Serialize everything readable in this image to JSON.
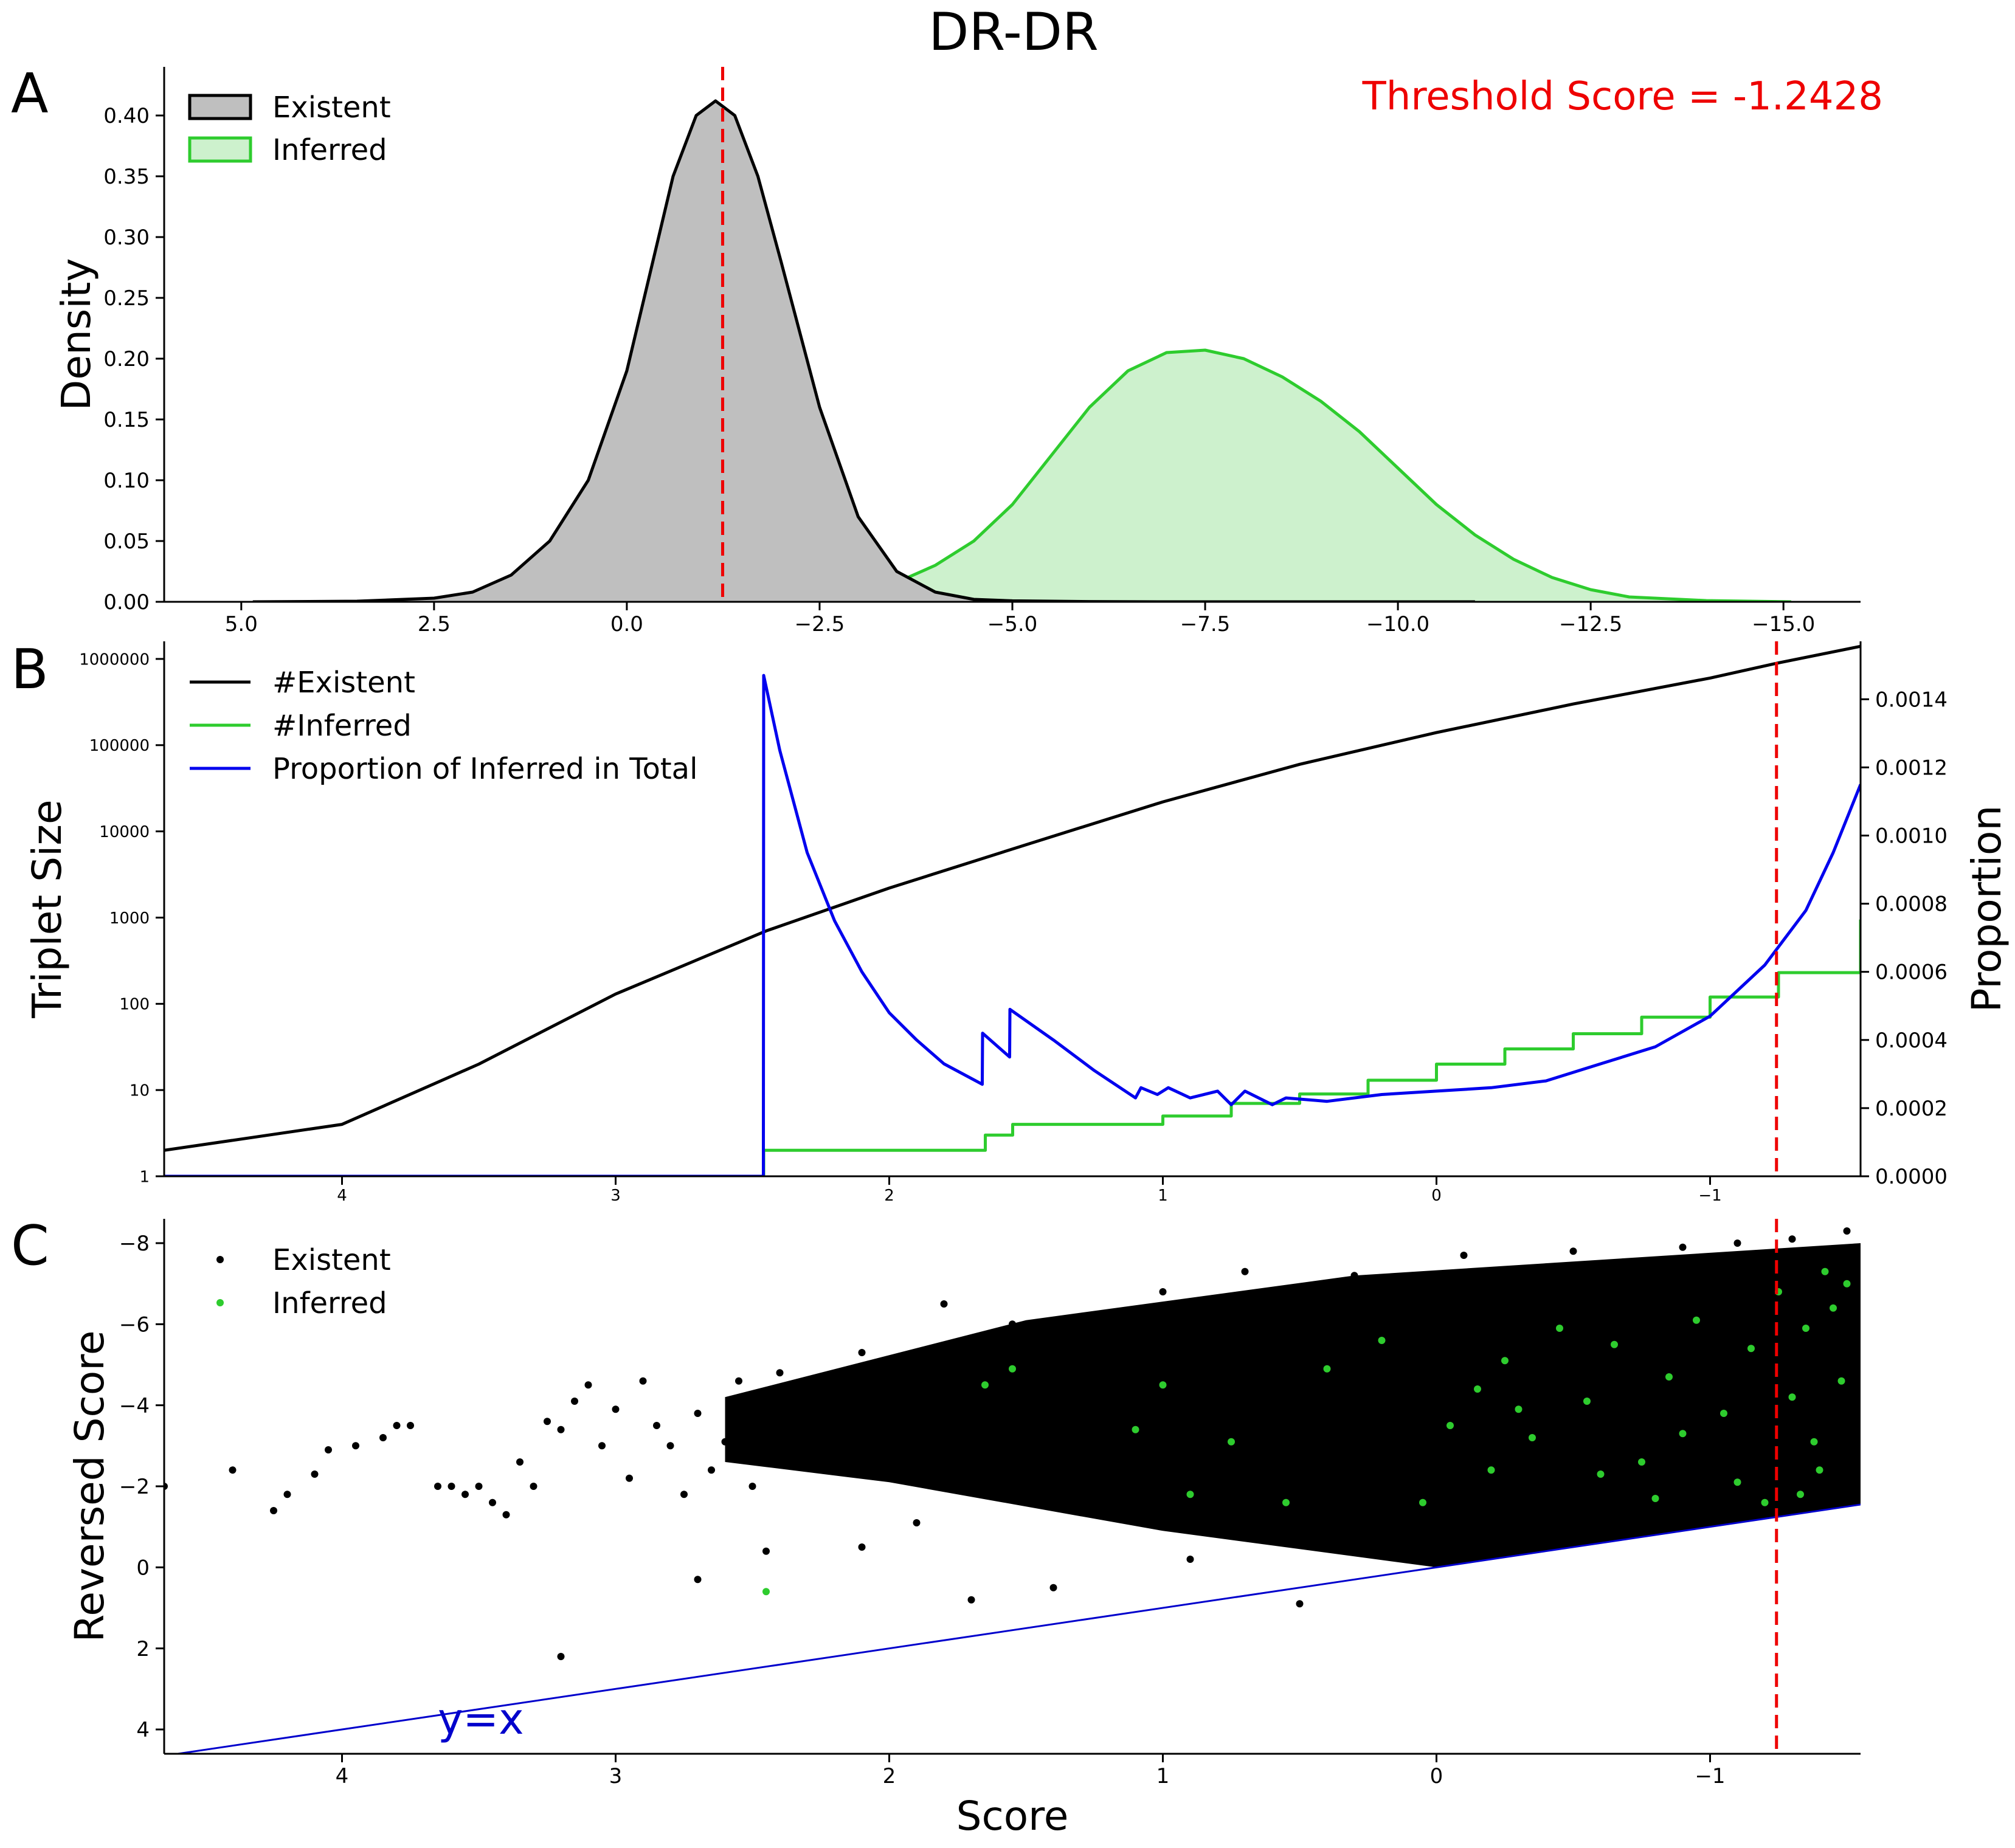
{
  "figure": {
    "title": "DR-DR",
    "threshold_label": "Threshold Score = -1.2428",
    "threshold_score": -1.2428,
    "colors": {
      "existent": "#000000",
      "existent_fill": "#bfbfbf",
      "inferred": "#2ecc2e",
      "inferred_fill": "#cdf1cd",
      "proportion": "#0000ee",
      "threshold": "#ee0000",
      "diagonal": "#0000cc"
    },
    "panels": [
      {
        "letter": "A"
      },
      {
        "letter": "B"
      },
      {
        "letter": "C"
      }
    ]
  },
  "chart_data": [
    {
      "panel": "A",
      "type": "area",
      "xlabel": "",
      "ylabel": "Density",
      "xlim": [
        6.0,
        -16.0
      ],
      "ylim": [
        0.0,
        0.44
      ],
      "x_reversed": true,
      "xticks": [
        5.0,
        2.5,
        0.0,
        -2.5,
        -5.0,
        -7.5,
        -10.0,
        -12.5,
        -15.0
      ],
      "xtick_labels": [
        "5.0",
        "2.5",
        "0.0",
        "−2.5",
        "−5.0",
        "−7.5",
        "−10.0",
        "−12.5",
        "−15.0"
      ],
      "yticks": [
        0.0,
        0.05,
        0.1,
        0.15,
        0.2,
        0.25,
        0.3,
        0.35,
        0.4
      ],
      "ytick_labels": [
        "0.00",
        "0.05",
        "0.10",
        "0.15",
        "0.20",
        "0.25",
        "0.30",
        "0.35",
        "0.40"
      ],
      "legend": {
        "placement": "upper-left",
        "entries": [
          "Existent",
          "Inferred"
        ]
      },
      "series": [
        {
          "name": "Existent",
          "x": [
            4.85,
            3.5,
            2.5,
            2.0,
            1.5,
            1.0,
            0.5,
            0.0,
            -0.3,
            -0.6,
            -0.9,
            -1.15,
            -1.4,
            -1.7,
            -2.0,
            -2.5,
            -3.0,
            -3.5,
            -4.0,
            -4.5,
            -5.0,
            -6.0,
            -7.0,
            -8.0,
            -10.0,
            -11.0
          ],
          "y": [
            0.0,
            0.0005,
            0.003,
            0.008,
            0.022,
            0.05,
            0.1,
            0.19,
            0.27,
            0.35,
            0.4,
            0.412,
            0.4,
            0.35,
            0.28,
            0.16,
            0.07,
            0.025,
            0.008,
            0.002,
            0.0008,
            0.0002,
            0.0,
            0.0,
            0.0,
            0.0
          ]
        },
        {
          "name": "Inferred",
          "x": [
            0.15,
            -1.0,
            -2.0,
            -3.0,
            -3.5,
            -4.0,
            -4.5,
            -5.0,
            -5.5,
            -6.0,
            -6.5,
            -7.0,
            -7.5,
            -8.0,
            -8.5,
            -9.0,
            -9.5,
            -10.0,
            -10.5,
            -11.0,
            -11.5,
            -12.0,
            -12.5,
            -13.0,
            -14.0,
            -15.1
          ],
          "y": [
            0.0,
            0.0005,
            0.002,
            0.008,
            0.016,
            0.03,
            0.05,
            0.08,
            0.12,
            0.16,
            0.19,
            0.205,
            0.207,
            0.2,
            0.185,
            0.165,
            0.14,
            0.11,
            0.08,
            0.055,
            0.035,
            0.02,
            0.01,
            0.004,
            0.001,
            0.0
          ]
        }
      ]
    },
    {
      "panel": "B",
      "type": "line",
      "xlabel": "",
      "ylabel": "Triplet Size",
      "ylabel_right": "Proportion",
      "xlim": [
        4.65,
        -1.55
      ],
      "x_reversed": true,
      "y_scale": "log",
      "ylim": [
        1,
        1600000
      ],
      "ylim_right": [
        0.0,
        0.00157
      ],
      "xticks": [
        4,
        3,
        2,
        1,
        0,
        -1
      ],
      "xtick_labels": [
        "4",
        "3",
        "2",
        "1",
        "0",
        "−1"
      ],
      "yticks": [
        1,
        10,
        100,
        1000,
        10000,
        100000,
        1000000
      ],
      "ytick_labels": [
        "1",
        "10",
        "100",
        "1000",
        "10000",
        "100000",
        "1000000"
      ],
      "yticks_right": [
        0.0,
        0.0002,
        0.0004,
        0.0006,
        0.0008,
        0.001,
        0.0012,
        0.0014
      ],
      "ytick_labels_right": [
        "0.0000",
        "0.0002",
        "0.0004",
        "0.0006",
        "0.0008",
        "0.0010",
        "0.0012",
        "0.0014"
      ],
      "legend": {
        "placement": "upper-left",
        "entries": [
          "#Existent",
          "#Inferred",
          "Proportion of Inferred in Total"
        ]
      },
      "series": [
        {
          "name": "#Existent",
          "axis": "left",
          "x": [
            4.65,
            4.0,
            3.5,
            3.0,
            2.45,
            2.0,
            1.5,
            1.0,
            0.5,
            0.0,
            -0.5,
            -1.0,
            -1.25,
            -1.55
          ],
          "y": [
            2,
            4,
            20,
            130,
            700,
            2200,
            7000,
            22000,
            60000,
            140000,
            300000,
            600000,
            900000,
            1400000
          ]
        },
        {
          "name": "#Inferred",
          "axis": "left",
          "step": true,
          "x": [
            4.65,
            2.46,
            2.459,
            1.65,
            1.649,
            1.55,
            1.549,
            1.1,
            1.0,
            0.75,
            0.5,
            0.25,
            0.0,
            -0.25,
            -0.5,
            -0.75,
            -1.0,
            -1.25,
            -1.55
          ],
          "y": [
            1,
            1,
            2,
            2,
            3,
            3,
            4,
            4,
            5,
            7,
            9,
            13,
            20,
            30,
            45,
            70,
            120,
            230,
            950
          ]
        },
        {
          "name": "Proportion of Inferred in Total",
          "axis": "right",
          "x": [
            4.65,
            2.46,
            2.459,
            2.4,
            2.3,
            2.2,
            2.1,
            2.0,
            1.9,
            1.8,
            1.66,
            1.659,
            1.56,
            1.559,
            1.4,
            1.25,
            1.1,
            1.08,
            1.02,
            0.98,
            0.9,
            0.8,
            0.75,
            0.7,
            0.6,
            0.55,
            0.4,
            0.2,
            0.0,
            -0.2,
            -0.4,
            -0.6,
            -0.8,
            -1.0,
            -1.2,
            -1.35,
            -1.45,
            -1.55
          ],
          "y": [
            0.0,
            0.0,
            0.00147,
            0.00125,
            0.00095,
            0.00075,
            0.0006,
            0.00048,
            0.0004,
            0.00033,
            0.00027,
            0.00042,
            0.00035,
            0.00049,
            0.0004,
            0.00031,
            0.00023,
            0.00026,
            0.00024,
            0.00026,
            0.00023,
            0.00025,
            0.00021,
            0.00025,
            0.00021,
            0.00023,
            0.00022,
            0.00024,
            0.00025,
            0.00026,
            0.00028,
            0.00033,
            0.00038,
            0.00047,
            0.00062,
            0.00078,
            0.00095,
            0.00115
          ]
        }
      ]
    },
    {
      "panel": "C",
      "type": "scatter",
      "xlabel": "Score",
      "ylabel": "Reversed Score",
      "xlim": [
        4.65,
        -1.55
      ],
      "ylim": [
        4.6,
        -8.6
      ],
      "x_reversed": true,
      "y_reversed": true,
      "xticks": [
        4,
        3,
        2,
        1,
        0,
        -1
      ],
      "xtick_labels": [
        "4",
        "3",
        "2",
        "1",
        "0",
        "−1"
      ],
      "yticks": [
        4,
        2,
        0,
        -2,
        -4,
        -6,
        -8
      ],
      "ytick_labels": [
        "4",
        "2",
        "0",
        "−2",
        "−4",
        "−6",
        "−8"
      ],
      "legend": {
        "placement": "upper-left",
        "entries": [
          "Existent",
          "Inferred"
        ]
      },
      "annotation": "y=x",
      "reference_line": {
        "label": "y=x",
        "x": [
          4.65,
          -1.55
        ],
        "y": [
          4.65,
          -1.55
        ]
      },
      "series": [
        {
          "name": "Existent",
          "density_region": {
            "x_from": 2.6,
            "x_to": -1.55,
            "upper_bound_at_x_from": -4.2,
            "upper_bound_at_x_to": -8.0,
            "lower_bound_follows": "y=x"
          },
          "x": [
            4.65,
            4.4,
            4.25,
            4.2,
            4.1,
            4.05,
            3.95,
            3.85,
            3.8,
            3.75,
            3.65,
            3.6,
            3.55,
            3.5,
            3.45,
            3.4,
            3.35,
            3.3,
            3.25,
            3.2,
            3.15,
            3.1,
            3.05,
            3.0,
            2.95,
            2.9,
            2.85,
            2.8,
            2.75,
            2.7,
            2.65,
            2.6,
            2.55,
            2.5,
            2.45,
            2.4,
            2.35,
            2.3,
            2.25,
            2.2,
            2.15,
            2.1,
            2.05,
            2.0,
            1.9,
            1.8,
            1.7,
            1.6,
            1.55,
            1.5,
            1.4,
            1.3,
            1.2,
            1.1,
            1.0,
            0.9,
            0.8,
            0.7,
            0.6,
            0.5,
            0.4,
            0.3,
            0.2,
            0.1,
            0.0,
            -0.1,
            -0.2,
            -0.3,
            -0.4,
            -0.5,
            -0.6,
            -0.7,
            -0.8,
            -0.9,
            -1.0,
            -1.1,
            -1.2,
            -1.3,
            -1.4,
            -1.5,
            3.2,
            2.7,
            2.45,
            2.1,
            1.9,
            1.7,
            1.4,
            0.9,
            0.5,
            -0.1,
            -0.9,
            -1.3
          ],
          "y": [
            -2.0,
            -2.4,
            -1.4,
            -1.8,
            -2.3,
            -2.9,
            -3.0,
            -3.2,
            -3.5,
            -3.5,
            -2.0,
            -2.0,
            -1.8,
            -2.0,
            -1.6,
            -1.3,
            -2.6,
            -2.0,
            -3.6,
            -3.4,
            -4.1,
            -4.5,
            -3.0,
            -3.9,
            -2.2,
            -4.6,
            -3.5,
            -3.0,
            -1.8,
            -3.8,
            -2.4,
            -3.1,
            -4.6,
            -2.0,
            -3.9,
            -4.8,
            -3.4,
            -2.7,
            -4.5,
            -3.6,
            -2.4,
            -5.3,
            -4.0,
            -3.5,
            -4.8,
            -6.5,
            -2.5,
            -5.5,
            -6.0,
            -3.5,
            -5.8,
            -4.4,
            -6.2,
            -3.2,
            -6.8,
            -5.9,
            -4.0,
            -7.3,
            -3.5,
            -6.5,
            -5.0,
            -7.2,
            -4.8,
            -6.0,
            -5.5,
            -7.7,
            -6.2,
            -7.0,
            -5.1,
            -7.8,
            -4.6,
            -7.0,
            -6.8,
            -7.9,
            -7.4,
            -8.0,
            -6.9,
            -8.1,
            -7.6,
            -8.3,
            2.2,
            0.3,
            -0.4,
            -0.5,
            -1.1,
            0.8,
            0.5,
            -0.2,
            0.9,
            -0.3,
            -1.5,
            -1.4
          ]
        },
        {
          "name": "Inferred",
          "x": [
            2.45,
            1.65,
            1.55,
            1.1,
            1.0,
            0.75,
            0.55,
            0.4,
            0.2,
            0.05,
            -0.05,
            -0.15,
            -0.25,
            -0.35,
            -0.45,
            -0.55,
            -0.65,
            -0.75,
            -0.85,
            -0.95,
            -1.05,
            -1.15,
            -1.25,
            -1.3,
            -1.35,
            -1.4,
            -1.45,
            -1.5,
            -0.3,
            -0.6,
            -0.9,
            -1.1,
            -1.2,
            -1.33,
            -1.42,
            -1.48,
            0.9,
            -0.2,
            -0.8,
            -1.38
          ],
          "y": [
            0.6,
            -4.5,
            -4.9,
            -3.4,
            -4.5,
            -3.1,
            -1.6,
            -4.9,
            -5.6,
            -1.6,
            -3.5,
            -4.4,
            -5.1,
            -3.2,
            -5.9,
            -4.1,
            -5.5,
            -2.6,
            -4.7,
            -6.1,
            -3.8,
            -5.4,
            -6.8,
            -4.2,
            -5.9,
            -2.4,
            -6.4,
            -7.0,
            -3.9,
            -2.3,
            -3.3,
            -2.1,
            -1.6,
            -1.8,
            -7.3,
            -4.6,
            -1.8,
            -2.4,
            -1.7,
            -3.1
          ]
        }
      ]
    }
  ]
}
